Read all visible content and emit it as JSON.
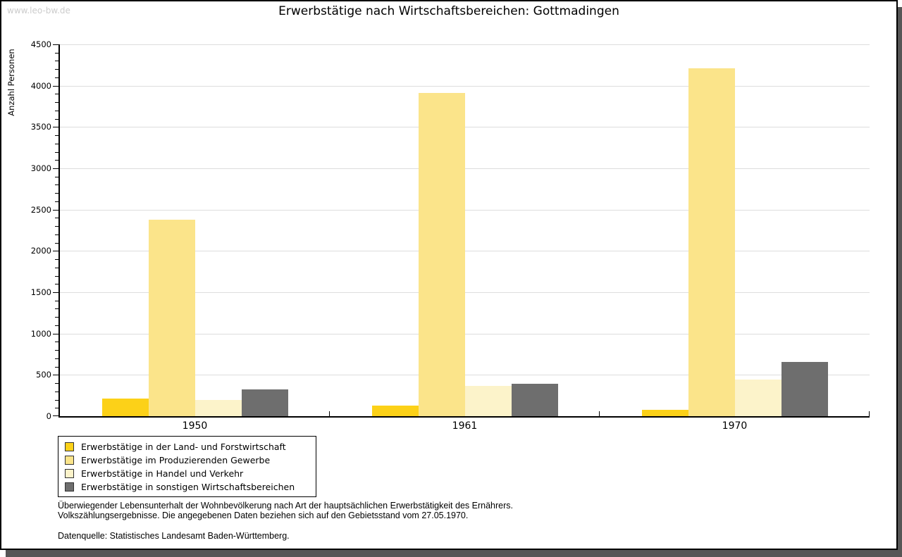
{
  "watermark": "www.leo-bw.de",
  "title": "Erwerbstätige nach Wirtschaftsbereichen: Gottmadingen",
  "footnotes": {
    "line1": "Überwiegender Lebensunterhalt der Wohnbevölkerung nach Art der hauptsächlichen Erwerbstätigkeit des Ernährers.",
    "line2": "Volkszählungsergebnisse. Die angegebenen Daten beziehen sich auf den Gebietsstand vom 27.05.1970.",
    "source": "Datenquelle: Statistisches Landesamt Baden-Württemberg."
  },
  "colors": {
    "grid": "#dddddd",
    "axis": "#000000",
    "watermark": "#cccccc",
    "frame_shadow": "#565656",
    "legend_swatch_border": "#333333"
  },
  "chart_data": {
    "type": "bar",
    "title": "Erwerbstätige nach Wirtschaftsbereichen: Gottmadingen",
    "xlabel": "",
    "ylabel": "Anzahl Personen",
    "ylim": [
      0,
      4500
    ],
    "ytick_major": 500,
    "ytick_minor": 100,
    "grid": "horizontal",
    "legend_position": "bottom-left",
    "categories": [
      "1950",
      "1961",
      "1970"
    ],
    "series": [
      {
        "name": "Erwerbstätige in der Land- und Forstwirtschaft",
        "color": "#fcd118",
        "values": [
          210,
          125,
          80
        ]
      },
      {
        "name": "Erwerbstätige im Produzierenden Gewerbe",
        "color": "#fbe48a",
        "values": [
          2380,
          3910,
          4210
        ]
      },
      {
        "name": "Erwerbstätige in Handel und Verkehr",
        "color": "#fcf3ca",
        "values": [
          200,
          370,
          445
        ]
      },
      {
        "name": "Erwerbstätige in sonstigen Wirtschaftsbereichen",
        "color": "#6e6e6e",
        "values": [
          320,
          390,
          655
        ]
      }
    ]
  }
}
